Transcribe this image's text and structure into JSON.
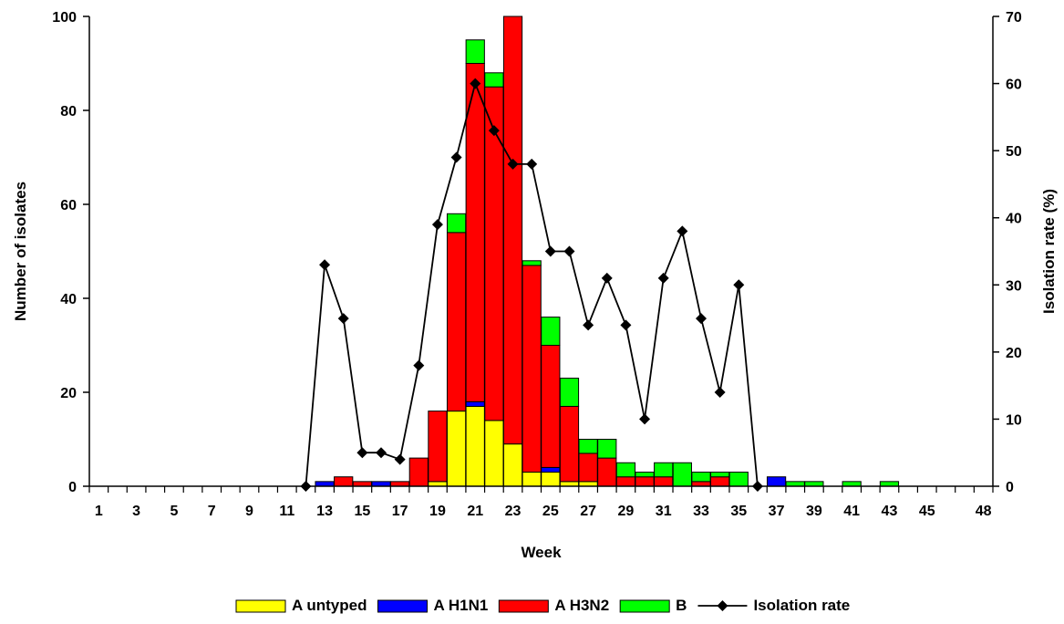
{
  "chart_data": {
    "type": "bar",
    "stacked": true,
    "x_label": "Week",
    "y_label": "Number of isolates",
    "y2_label": "Isolation rate (%)",
    "ylim": [
      0,
      100
    ],
    "y2lim": [
      0,
      70
    ],
    "y_ticks": [
      0,
      20,
      40,
      60,
      80,
      100
    ],
    "y2_ticks": [
      0,
      10,
      20,
      30,
      40,
      50,
      60,
      70
    ],
    "weeks": [
      1,
      2,
      3,
      4,
      5,
      6,
      7,
      8,
      9,
      10,
      11,
      12,
      13,
      14,
      15,
      16,
      17,
      18,
      19,
      20,
      21,
      22,
      23,
      24,
      25,
      26,
      27,
      28,
      29,
      30,
      31,
      32,
      33,
      34,
      35,
      36,
      37,
      38,
      39,
      40,
      41,
      42,
      43,
      44,
      45,
      46,
      47,
      48
    ],
    "x_tick_labels": [
      "1",
      "3",
      "5",
      "7",
      "9",
      "11",
      "13",
      "15",
      "17",
      "19",
      "21",
      "23",
      "25",
      "27",
      "29",
      "31",
      "33",
      "35",
      "37",
      "39",
      "41",
      "43",
      "45",
      "48"
    ],
    "x_tick_weeks": [
      1,
      3,
      5,
      7,
      9,
      11,
      13,
      15,
      17,
      19,
      21,
      23,
      25,
      27,
      29,
      31,
      33,
      35,
      37,
      39,
      41,
      43,
      45,
      48
    ],
    "series": [
      {
        "name": "A untyped",
        "color": "#ffff00",
        "values": [
          0,
          0,
          0,
          0,
          0,
          0,
          0,
          0,
          0,
          0,
          0,
          0,
          0,
          0,
          0,
          0,
          0,
          0,
          1,
          16,
          17,
          14,
          9,
          3,
          3,
          1,
          1,
          0,
          0,
          0,
          0,
          0,
          0,
          0,
          0,
          0,
          0,
          0,
          0,
          0,
          0,
          0,
          0,
          0,
          0,
          0,
          0,
          0
        ]
      },
      {
        "name": "A H1N1",
        "color": "#0000ff",
        "values": [
          0,
          0,
          0,
          0,
          0,
          0,
          0,
          0,
          0,
          0,
          0,
          0,
          1,
          0,
          0,
          1,
          0,
          0,
          0,
          0,
          1,
          0,
          0,
          0,
          1,
          0,
          0,
          0,
          0,
          0,
          0,
          0,
          0,
          0,
          0,
          0,
          2,
          0,
          0,
          0,
          0,
          0,
          0,
          0,
          0,
          0,
          0,
          0
        ]
      },
      {
        "name": "A H3N2",
        "color": "#ff0000",
        "values": [
          0,
          0,
          0,
          0,
          0,
          0,
          0,
          0,
          0,
          0,
          0,
          0,
          0,
          2,
          1,
          0,
          1,
          6,
          15,
          38,
          72,
          71,
          92,
          44,
          26,
          16,
          6,
          6,
          2,
          2,
          2,
          0,
          1,
          2,
          0,
          0,
          0,
          0,
          0,
          0,
          0,
          0,
          0,
          0,
          0,
          0,
          0,
          0
        ]
      },
      {
        "name": "B",
        "color": "#00ff00",
        "values": [
          0,
          0,
          0,
          0,
          0,
          0,
          0,
          0,
          0,
          0,
          0,
          0,
          0,
          0,
          0,
          0,
          0,
          0,
          0,
          4,
          5,
          3,
          0,
          1,
          6,
          6,
          3,
          4,
          3,
          1,
          3,
          5,
          2,
          1,
          3,
          0,
          0,
          1,
          1,
          0,
          1,
          0,
          1,
          0,
          0,
          0,
          0,
          0
        ]
      }
    ],
    "line": {
      "name": "Isolation rate",
      "color": "#000000",
      "points": [
        {
          "week": 12,
          "value": 0
        },
        {
          "week": 13,
          "value": 33
        },
        {
          "week": 14,
          "value": 25
        },
        {
          "week": 15,
          "value": 5
        },
        {
          "week": 16,
          "value": 5
        },
        {
          "week": 17,
          "value": 4
        },
        {
          "week": 18,
          "value": 18
        },
        {
          "week": 19,
          "value": 39
        },
        {
          "week": 20,
          "value": 49
        },
        {
          "week": 21,
          "value": 60
        },
        {
          "week": 22,
          "value": 53
        },
        {
          "week": 23,
          "value": 48
        },
        {
          "week": 24,
          "value": 48
        },
        {
          "week": 25,
          "value": 35
        },
        {
          "week": 26,
          "value": 35
        },
        {
          "week": 27,
          "value": 24
        },
        {
          "week": 28,
          "value": 31
        },
        {
          "week": 29,
          "value": 24
        },
        {
          "week": 30,
          "value": 10
        },
        {
          "week": 31,
          "value": 31
        },
        {
          "week": 32,
          "value": 38
        },
        {
          "week": 33,
          "value": 25
        },
        {
          "week": 34,
          "value": 14
        },
        {
          "week": 35,
          "value": 30
        },
        {
          "week": 36,
          "value": 0
        }
      ]
    },
    "legend": {
      "position": "bottom",
      "items": [
        {
          "label": "A untyped",
          "kind": "box",
          "color": "#ffff00"
        },
        {
          "label": "A H1N1",
          "kind": "box",
          "color": "#0000ff"
        },
        {
          "label": "A H3N2",
          "kind": "box",
          "color": "#ff0000"
        },
        {
          "label": "B",
          "kind": "box",
          "color": "#00ff00"
        },
        {
          "label": "Isolation rate",
          "kind": "line",
          "color": "#000000"
        }
      ]
    },
    "grid": false
  }
}
